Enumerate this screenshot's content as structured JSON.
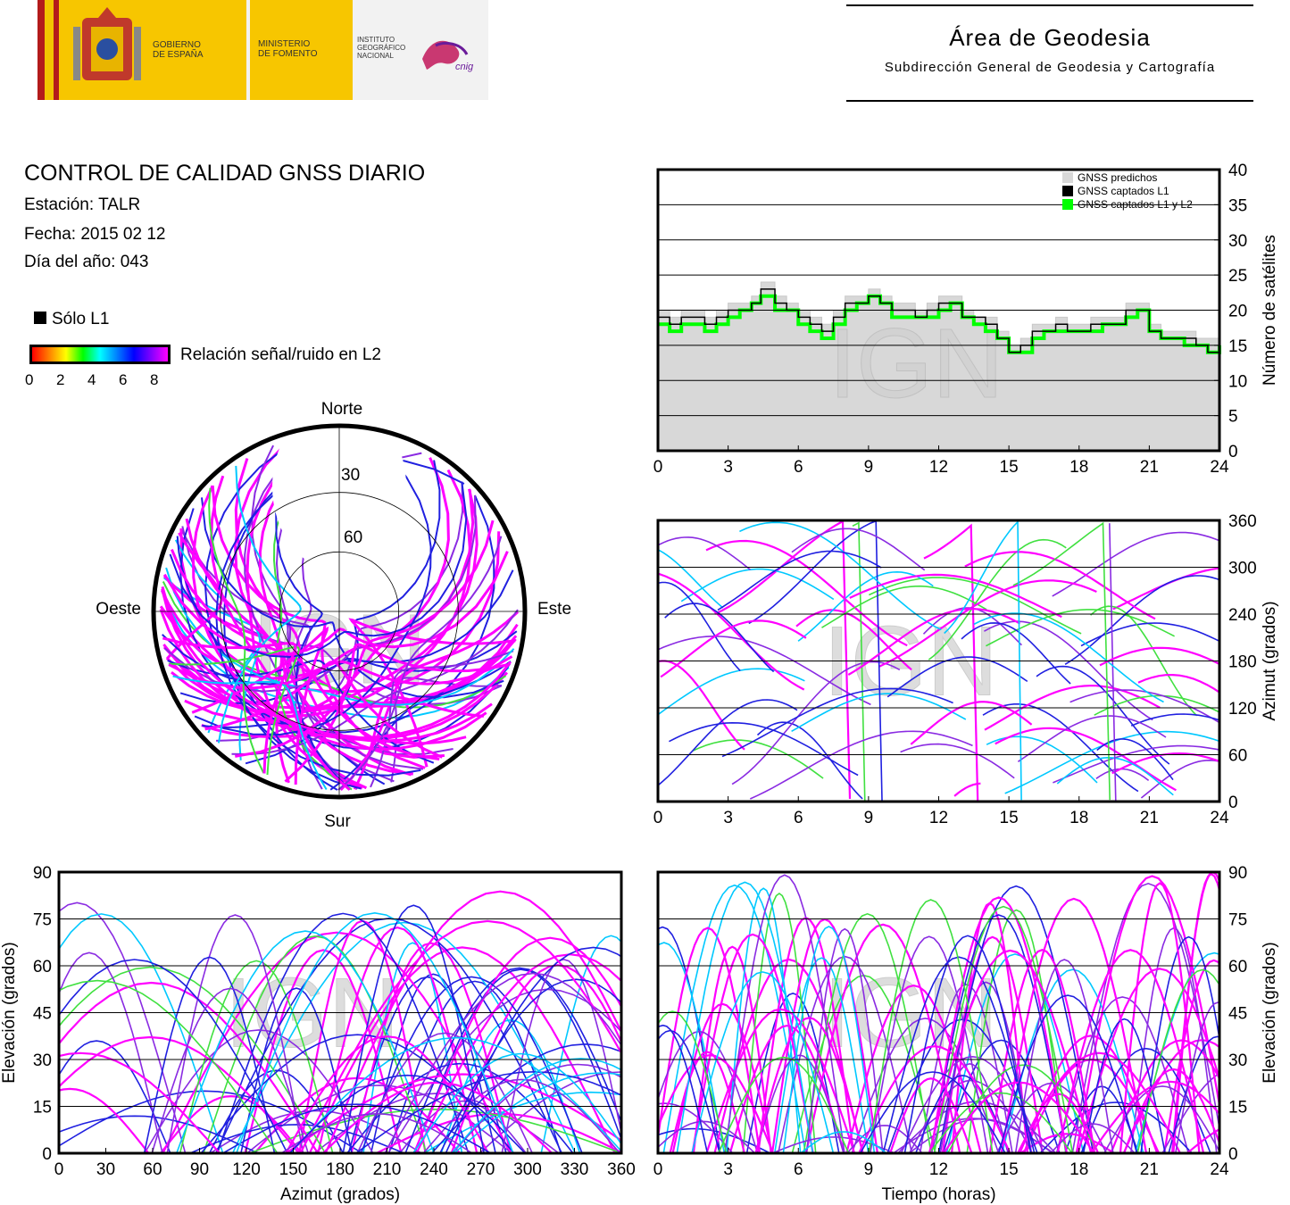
{
  "header": {
    "gov_label": "GOBIERNO\nDE ESPAÑA",
    "ministry_label": "MINISTERIO\nDE FOMENTO",
    "institute_label": "INSTITUTO\nGEOGRÁFICO\nNACIONAL",
    "cnig_label": "cnig",
    "area_title": "Área de Geodesia",
    "area_subtitle": "Subdirección General de Geodesia y Cartografía"
  },
  "report": {
    "title": "CONTROL DE CALIDAD GNSS DIARIO",
    "station": "Estación: TALR",
    "date": "Fecha: 2015 02 12",
    "doy": "Día del año: 043"
  },
  "legend": {
    "only_l1": "Sólo L1",
    "snr_label": "Relación señal/ruido en L2",
    "snr_ticks": [
      "0",
      "2",
      "4",
      "6",
      "8"
    ]
  },
  "watermark": "IGN",
  "colors": {
    "magenta": "#ff00ff",
    "purple": "#8a2be2",
    "blue": "#2020e0",
    "cyan": "#00c8ff",
    "green": "#40e040",
    "black": "#000000",
    "predicted": "#d8d8d8",
    "l1l2": "#00ff00"
  },
  "chart_data": [
    {
      "type": "area",
      "id": "satellites",
      "ylabel": "Número de satélites",
      "xlim": [
        0,
        24
      ],
      "ylim": [
        0,
        40
      ],
      "xticks": [
        "0",
        "3",
        "6",
        "9",
        "12",
        "15",
        "18",
        "21",
        "24"
      ],
      "yticks": [
        "0",
        "5",
        "10",
        "15",
        "20",
        "25",
        "30",
        "35",
        "40"
      ],
      "legend": [
        "GNSS predichos",
        "GNSS captados L1",
        "GNSS captados L1 y L2"
      ],
      "legend_position": "top-right",
      "x": [
        0,
        0.5,
        1,
        1.5,
        2,
        2.5,
        3,
        3.5,
        4,
        4.4,
        5,
        5.5,
        6,
        6.5,
        7,
        7.5,
        8,
        8.5,
        9,
        9.5,
        10,
        10.5,
        11,
        11.5,
        12,
        12.5,
        13,
        13.5,
        14,
        14.5,
        15,
        15.5,
        16,
        16.5,
        17,
        17.5,
        18,
        18.5,
        19,
        19.5,
        20,
        20.5,
        21,
        21.5,
        22,
        22.5,
        23,
        23.5,
        24
      ],
      "series": [
        {
          "name": "GNSS predichos",
          "values": [
            20,
            19,
            20,
            20,
            19,
            20,
            21,
            21,
            22,
            24,
            22,
            21,
            20,
            19,
            18,
            20,
            22,
            22,
            23,
            22,
            21,
            21,
            20,
            21,
            22,
            22,
            20,
            19,
            19,
            17,
            15,
            16,
            18,
            18,
            19,
            18,
            18,
            19,
            19,
            19,
            21,
            21,
            18,
            17,
            17,
            17,
            16,
            16,
            17
          ]
        },
        {
          "name": "GNSS captados L1",
          "values": [
            19,
            18,
            19,
            19,
            18,
            19,
            20,
            20,
            21,
            23,
            21,
            20,
            19,
            18,
            17,
            19,
            21,
            21,
            22,
            21,
            20,
            20,
            19,
            20,
            21,
            21,
            19,
            19,
            18,
            16,
            14,
            15,
            17,
            17,
            18,
            17,
            17,
            18,
            18,
            18,
            20,
            20,
            17,
            16,
            16,
            16,
            15,
            14,
            16
          ]
        },
        {
          "name": "GNSS captados L1 y L2",
          "values": [
            18,
            17,
            18,
            18,
            17,
            18,
            19,
            20,
            21,
            22,
            20,
            20,
            18,
            17,
            16,
            18,
            20,
            21,
            22,
            21,
            19,
            19,
            19,
            19,
            20,
            21,
            19,
            18,
            17,
            16,
            14,
            14,
            16,
            17,
            17,
            17,
            17,
            17,
            18,
            18,
            19,
            20,
            17,
            16,
            16,
            15,
            15,
            14,
            15
          ]
        }
      ]
    },
    {
      "type": "scatter",
      "id": "skyplot",
      "labels": {
        "north": "Norte",
        "south": "Sur",
        "east": "Este",
        "west": "Oeste"
      },
      "rings": [
        "30",
        "60"
      ]
    },
    {
      "type": "scatter",
      "id": "azimuth_time",
      "xlabel": "",
      "ylabel": "Azimut (grados)",
      "xlim": [
        0,
        24
      ],
      "ylim": [
        0,
        360
      ],
      "xticks": [
        "0",
        "3",
        "6",
        "9",
        "12",
        "15",
        "18",
        "21",
        "24"
      ],
      "yticks": [
        "0",
        "60",
        "120",
        "180",
        "240",
        "300",
        "360"
      ]
    },
    {
      "type": "scatter",
      "id": "elev_azimuth",
      "xlabel": "Azimut (grados)",
      "ylabel": "Elevación (grados)",
      "xlim": [
        0,
        360
      ],
      "ylim": [
        0,
        90
      ],
      "xticks": [
        "0",
        "30",
        "60",
        "90",
        "120",
        "150",
        "180",
        "210",
        "240",
        "270",
        "300",
        "330",
        "360"
      ],
      "yticks": [
        "0",
        "15",
        "30",
        "45",
        "60",
        "75",
        "90"
      ]
    },
    {
      "type": "scatter",
      "id": "elev_time",
      "xlabel": "Tiempo (horas)",
      "ylabel": "Elevación (grados)",
      "xlim": [
        0,
        24
      ],
      "ylim": [
        0,
        90
      ],
      "xticks": [
        "0",
        "3",
        "6",
        "9",
        "12",
        "15",
        "18",
        "21",
        "24"
      ],
      "yticks": [
        "0",
        "15",
        "30",
        "45",
        "60",
        "75",
        "90"
      ]
    }
  ]
}
